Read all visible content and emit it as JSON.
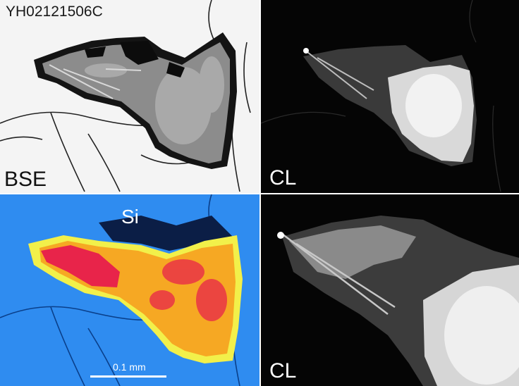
{
  "sample_id": "YH02121506C",
  "panels": {
    "bse": {
      "label": "BSE"
    },
    "cl_top": {
      "label": "CL"
    },
    "si_map": {
      "label": "Si",
      "scale_label": "0.1 mm"
    },
    "cl_bottom": {
      "label": "CL"
    }
  },
  "colors": {
    "bse_background": "#f4f4f4",
    "bse_grain": "#8c8c8c",
    "cl_background": "#050505",
    "cl_bright": "#f2f2f2",
    "si_background": "#2f8cf0",
    "si_high": "#e8244a",
    "si_mid": "#f6a823",
    "si_low": "#f2f04a"
  },
  "icons": [
    "grain-image",
    "crack-lines"
  ]
}
